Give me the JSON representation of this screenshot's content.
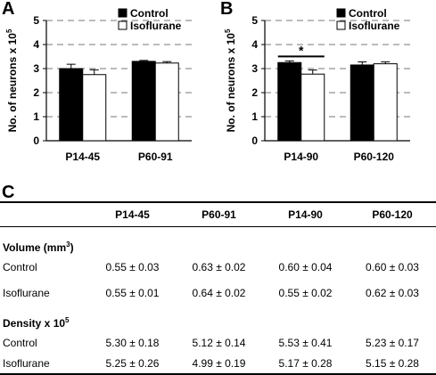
{
  "panels": {
    "a": "A",
    "b": "B",
    "c": "C"
  },
  "colors": {
    "control": "#000000",
    "isoflurane": "#ffffff",
    "grid": "#777777"
  },
  "chart_data": [
    {
      "type": "bar",
      "panel": "A",
      "ylabel": "No. of neurons x 10",
      "ylabel_sup": "5",
      "ylim": [
        0,
        5
      ],
      "yticks": [
        0,
        1,
        2,
        3,
        4,
        5
      ],
      "grid": "dashed horizontal",
      "legend": "top-right",
      "categories": [
        "P14-45",
        "P60-91"
      ],
      "series": [
        {
          "name": "Control",
          "values": [
            3.0,
            3.3
          ],
          "errors": [
            0.18,
            0.04
          ]
        },
        {
          "name": "Isoflurane",
          "values": [
            2.75,
            3.23
          ],
          "errors": [
            0.2,
            0.06
          ]
        }
      ],
      "annotations": []
    },
    {
      "type": "bar",
      "panel": "B",
      "ylabel": "No. of neurons x 10",
      "ylabel_sup": "5",
      "ylim": [
        0,
        5
      ],
      "yticks": [
        0,
        1,
        2,
        3,
        4,
        5
      ],
      "grid": "dashed horizontal",
      "legend": "top-right",
      "categories": [
        "P14-90",
        "P60-120"
      ],
      "series": [
        {
          "name": "Control",
          "values": [
            3.25,
            3.15
          ],
          "errors": [
            0.07,
            0.13
          ]
        },
        {
          "name": "Isoflurane",
          "values": [
            2.77,
            3.2
          ],
          "errors": [
            0.17,
            0.08
          ]
        }
      ],
      "annotations": [
        {
          "text": "*",
          "category": "P14-90"
        }
      ]
    }
  ],
  "table": {
    "columns": [
      "P14-45",
      "P60-91",
      "P14-90",
      "P60-120"
    ],
    "volume_title": "Volume (mm",
    "volume_sup": "3",
    "volume_close": ")",
    "density_title": "Density x 10",
    "density_sup": "5",
    "volume_rows": [
      {
        "label": "Control",
        "values": [
          "0.55 ± 0.03",
          "0.63 ± 0.02",
          "0.60 ± 0.04",
          "0.60 ± 0.03"
        ]
      },
      {
        "label": "Isoflurane",
        "values": [
          "0.55 ± 0.01",
          "0.64 ± 0.02",
          "0.55 ± 0.02",
          "0.62 ± 0.03"
        ]
      }
    ],
    "density_rows": [
      {
        "label": "Control",
        "values": [
          "5.30 ± 0.18",
          "5.12 ± 0.14",
          "5.53 ± 0.41",
          "5.23 ± 0.17"
        ]
      },
      {
        "label": "Isoflurane",
        "values": [
          "5.25 ± 0.26",
          "4.99 ± 0.19",
          "5.17 ± 0.28",
          "5.15 ± 0.28"
        ]
      }
    ]
  }
}
